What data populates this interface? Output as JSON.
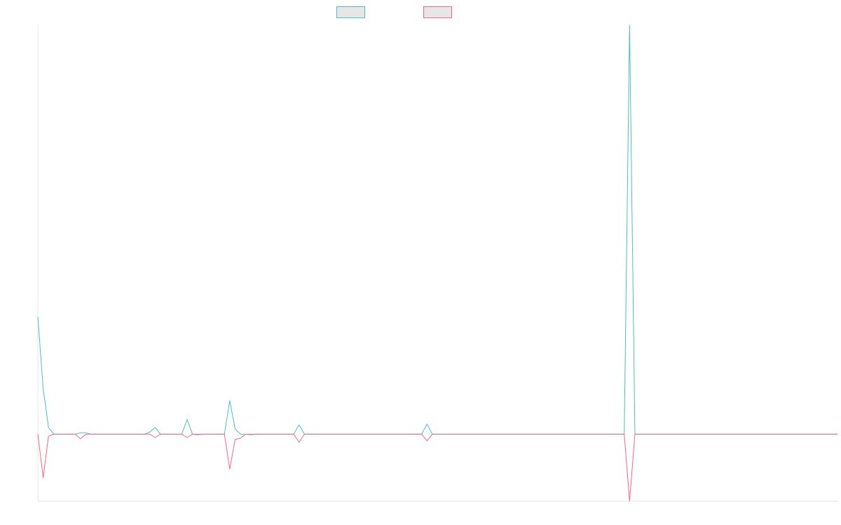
{
  "chart_data": {
    "type": "line",
    "title": "",
    "xlabel": "",
    "ylabel": "",
    "grid": false,
    "legend": {
      "placement": "top-center",
      "entries": [
        {
          "color": "#4bc0c0",
          "fill": "#e6e6e6"
        },
        {
          "color": "#ff6384",
          "fill": "#e6e6e6"
        }
      ]
    },
    "colors": {
      "series_a": "#4bc0c0",
      "series_b": "#ff6384",
      "axis": "#e6e6e6"
    },
    "ylim": [
      -100,
      610
    ],
    "x_points": 151,
    "series": [
      {
        "color": "#4bc0c0",
        "points": [
          [
            0,
            175
          ],
          [
            1,
            68
          ],
          [
            2,
            10
          ],
          [
            8,
            2
          ],
          [
            9,
            2
          ],
          [
            21,
            3
          ],
          [
            22,
            10
          ],
          [
            28,
            22
          ],
          [
            36,
            50
          ],
          [
            37,
            8
          ],
          [
            49,
            14
          ],
          [
            73,
            15
          ],
          [
            111,
            610
          ]
        ]
      },
      {
        "color": "#ff6384",
        "points": [
          [
            1,
            -65
          ],
          [
            2,
            -3
          ],
          [
            8,
            -7
          ],
          [
            22,
            -5
          ],
          [
            28,
            -5
          ],
          [
            30,
            -1
          ],
          [
            36,
            -52
          ],
          [
            37,
            -8
          ],
          [
            38,
            -6
          ],
          [
            40,
            -1
          ],
          [
            49,
            -12
          ],
          [
            73,
            -10
          ],
          [
            111,
            -100
          ]
        ]
      }
    ]
  }
}
